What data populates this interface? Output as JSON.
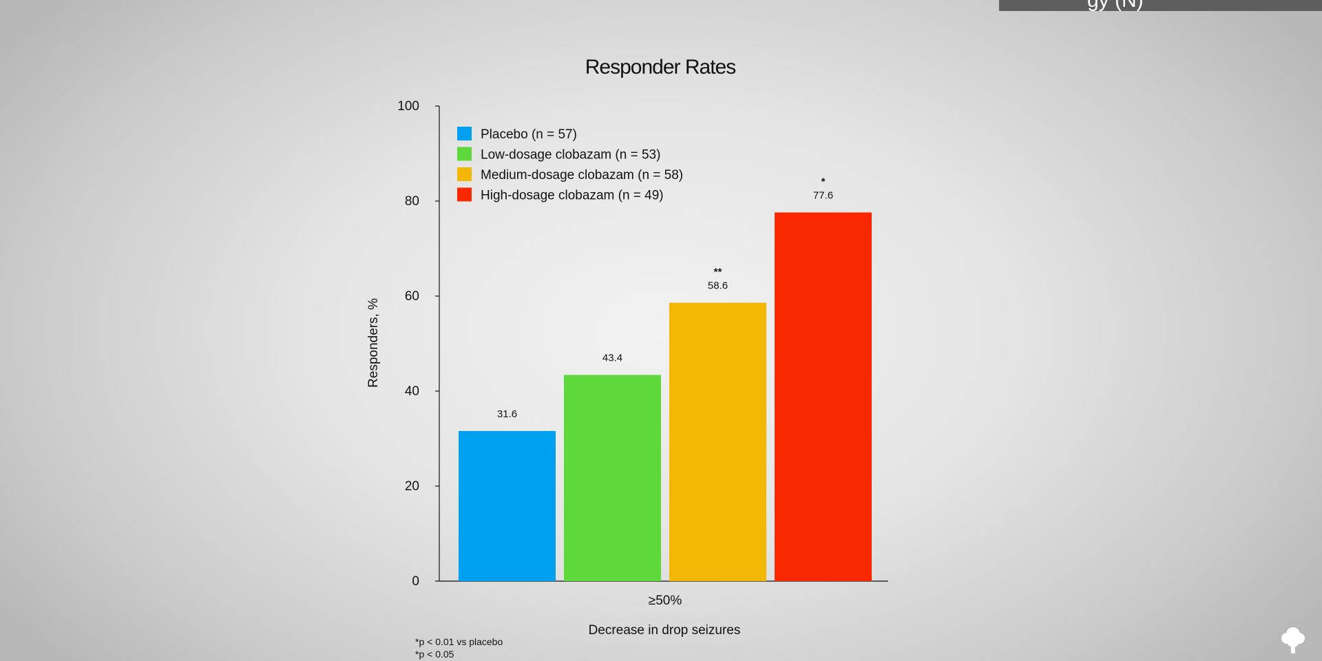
{
  "banner": {
    "text": "gy (N)"
  },
  "chart_data": {
    "type": "bar",
    "title": "Responder Rates",
    "xlabel": "Decrease in drop seizures",
    "ylabel": "Responders, %",
    "ylim": [
      0,
      100
    ],
    "yticks": [
      0,
      20,
      40,
      60,
      80,
      100
    ],
    "categories": [
      "≥50%"
    ],
    "grid": false,
    "legend_position": "top-left",
    "series": [
      {
        "name": "Placebo (n = 57)",
        "values": [
          31.6
        ],
        "label": "31.6",
        "significance": "",
        "color": "#00a0f0"
      },
      {
        "name": "Low-dosage clobazam (n = 53)",
        "values": [
          43.4
        ],
        "label": "43.4",
        "significance": "",
        "color": "#5ed83a"
      },
      {
        "name": "Medium-dosage clobazam (n = 58)",
        "values": [
          58.6
        ],
        "label": "58.6",
        "significance": "**",
        "color": "#f2b705"
      },
      {
        "name": "High-dosage clobazam (n = 49)",
        "values": [
          77.6
        ],
        "label": "77.6",
        "significance": "*",
        "color": "#fa2800"
      }
    ],
    "footnotes": [
      "*p < 0.01 vs placebo",
      "*p < 0.05"
    ]
  }
}
